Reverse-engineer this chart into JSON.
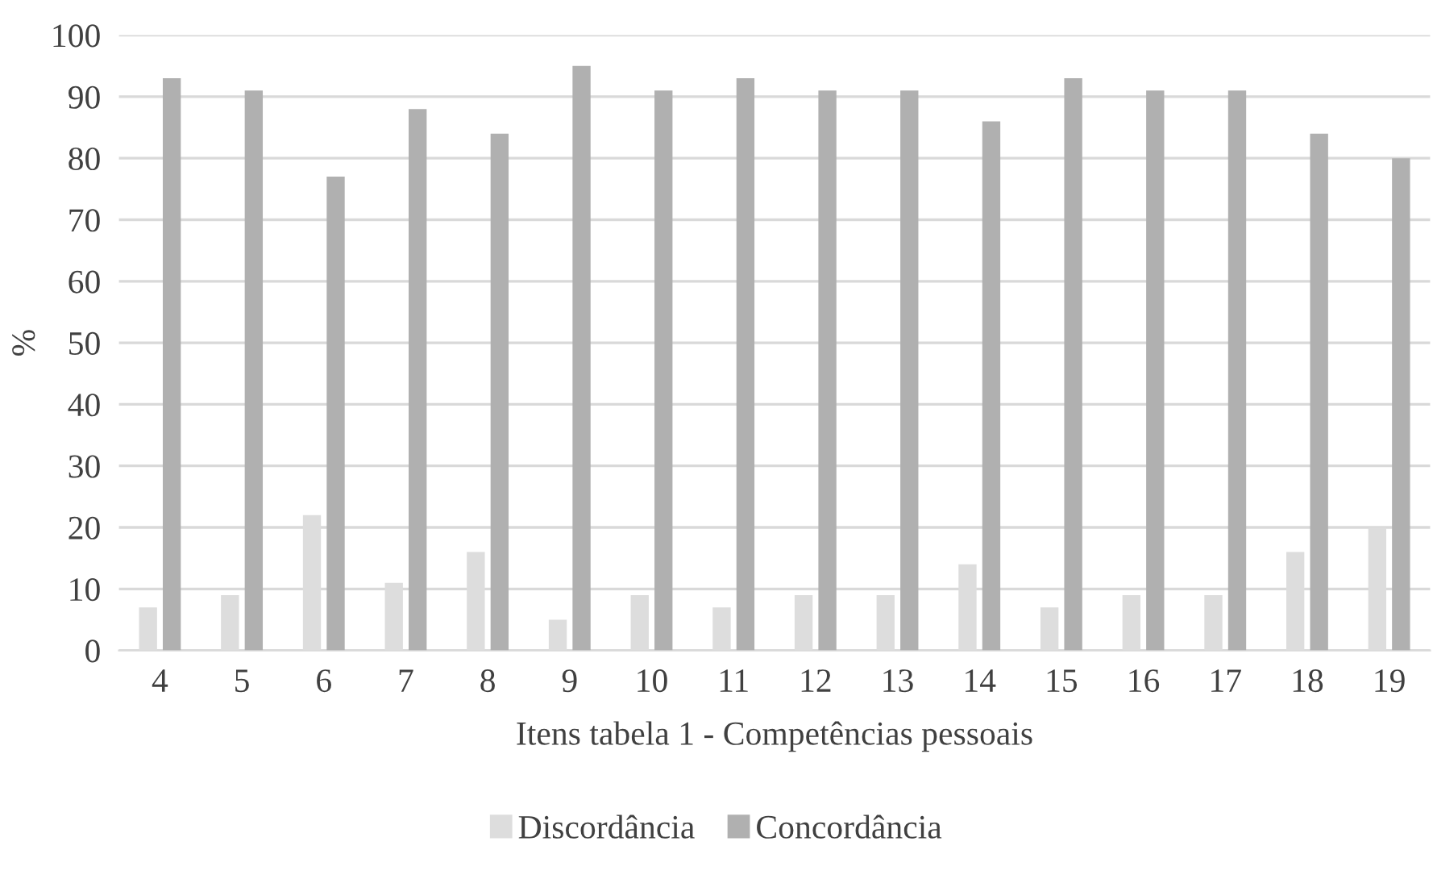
{
  "chart_data": {
    "type": "bar",
    "xlabel": "Itens tabela 1 - Competências pessoais",
    "ylabel": "%",
    "categories": [
      "4",
      "5",
      "6",
      "7",
      "8",
      "9",
      "10",
      "11",
      "12",
      "13",
      "14",
      "15",
      "16",
      "17",
      "18",
      "19"
    ],
    "series": [
      {
        "name": "Discordância",
        "color": "#dddddd",
        "values": [
          7,
          9,
          22,
          11,
          16,
          5,
          9,
          7,
          9,
          9,
          14,
          7,
          9,
          9,
          16,
          20
        ]
      },
      {
        "name": "Concordância",
        "color": "#b0b0b0",
        "values": [
          93,
          91,
          77,
          88,
          84,
          95,
          91,
          93,
          91,
          91,
          86,
          93,
          91,
          91,
          84,
          80
        ]
      }
    ],
    "ylim": [
      0,
      100
    ],
    "yticks": [
      0,
      10,
      20,
      30,
      40,
      50,
      60,
      70,
      80,
      90,
      100
    ],
    "grid": "y",
    "legend": "bottom"
  }
}
